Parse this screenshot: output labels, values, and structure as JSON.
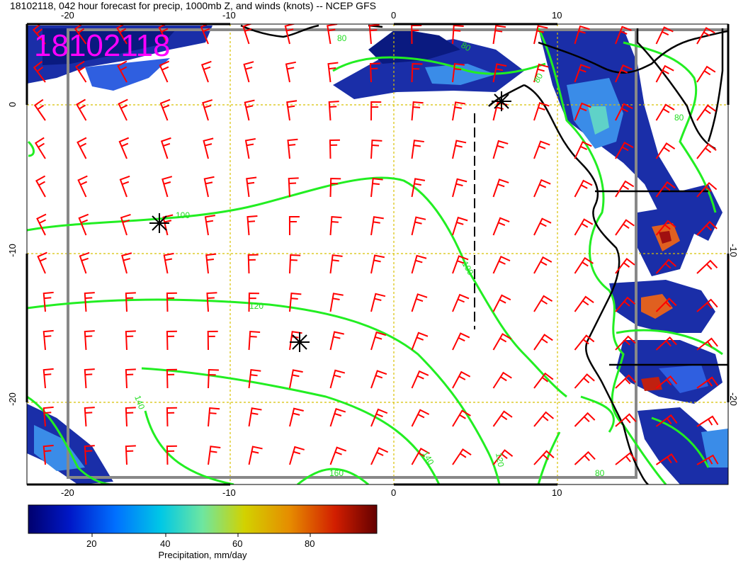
{
  "title": "18102118, 042 hour forecast for precip, 1000mb Z, and winds (knots) -- NCEP GFS",
  "stamp": "18102118",
  "axes": {
    "top_ticks": [
      "-20",
      "-10",
      "0",
      "10"
    ],
    "bottom_ticks": [
      "-20",
      "-10",
      "0",
      "10"
    ],
    "left_ticks": [
      "0",
      "-10",
      "-20"
    ],
    "right_ticks": [
      "-10",
      "-20"
    ]
  },
  "contour_labels": [
    "80",
    "100",
    "100",
    "120",
    "120",
    "140",
    "140",
    "160",
    "80",
    "80",
    "80",
    "80"
  ],
  "colorbar": {
    "ticks": [
      "20",
      "40",
      "60",
      "80"
    ],
    "label": "Precipitation, mm/day",
    "colors": [
      "#00006e",
      "#0018c8",
      "#0070ff",
      "#00c8e6",
      "#6ee6a0",
      "#d2d200",
      "#e68c00",
      "#d21e00",
      "#640000"
    ]
  },
  "colors": {
    "contour": "#22ee22",
    "wind_barb": "#ff0000",
    "grid": "#d8c000",
    "frame": "#888888",
    "coast": "#000000"
  }
}
